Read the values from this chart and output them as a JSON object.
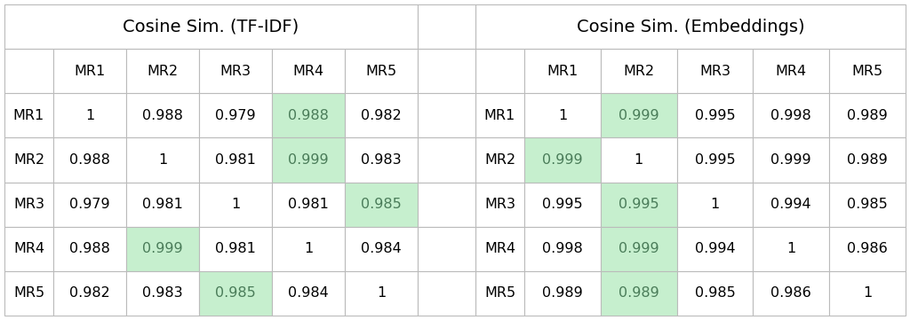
{
  "tfidf_title": "Cosine Sim. (TF-IDF)",
  "embed_title": "Cosine Sim. (Embeddings)",
  "row_labels": [
    "MR1",
    "MR2",
    "MR3",
    "MR4",
    "MR5"
  ],
  "col_labels": [
    "MR1",
    "MR2",
    "MR3",
    "MR4",
    "MR5"
  ],
  "tfidf_data": [
    [
      "1",
      "0.988",
      "0.979",
      "0.988",
      "0.982"
    ],
    [
      "0.988",
      "1",
      "0.981",
      "0.999",
      "0.983"
    ],
    [
      "0.979",
      "0.981",
      "1",
      "0.981",
      "0.985"
    ],
    [
      "0.988",
      "0.999",
      "0.981",
      "1",
      "0.984"
    ],
    [
      "0.982",
      "0.983",
      "0.985",
      "0.984",
      "1"
    ]
  ],
  "embed_data": [
    [
      "1",
      "0.999",
      "0.995",
      "0.998",
      "0.989"
    ],
    [
      "0.999",
      "1",
      "0.995",
      "0.999",
      "0.989"
    ],
    [
      "0.995",
      "0.995",
      "1",
      "0.994",
      "0.985"
    ],
    [
      "0.998",
      "0.999",
      "0.994",
      "1",
      "0.986"
    ],
    [
      "0.989",
      "0.989",
      "0.985",
      "0.986",
      "1"
    ]
  ],
  "tfidf_highlight": [
    [
      false,
      false,
      false,
      true,
      false
    ],
    [
      false,
      false,
      false,
      true,
      false
    ],
    [
      false,
      false,
      false,
      false,
      true
    ],
    [
      false,
      true,
      false,
      false,
      false
    ],
    [
      false,
      false,
      true,
      false,
      false
    ]
  ],
  "embed_highlight": [
    [
      false,
      true,
      false,
      false,
      false
    ],
    [
      true,
      false,
      false,
      false,
      false
    ],
    [
      false,
      true,
      false,
      false,
      false
    ],
    [
      false,
      true,
      false,
      false,
      false
    ],
    [
      false,
      true,
      false,
      false,
      false
    ]
  ],
  "highlight_color": "#c6efce",
  "bg_color": "#ffffff",
  "border_color": "#bbbbbb",
  "text_color": "#000000",
  "highlight_text_color": "#4a7c59",
  "font_size": 11.5,
  "header_font_size": 14,
  "fig_width": 10.24,
  "fig_height": 3.61,
  "dpi": 100
}
